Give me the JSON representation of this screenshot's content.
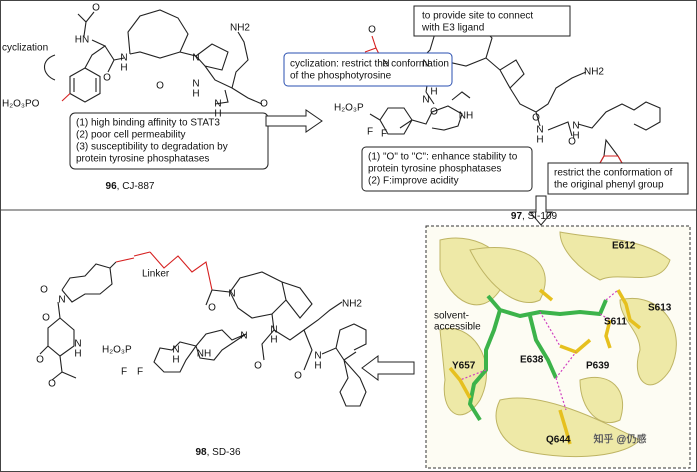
{
  "compound_96": {
    "number": "96",
    "label": ", CJ-887",
    "annotation": "cyclization",
    "phosphate": "H₂O₃PO",
    "atoms": [
      "HN",
      "O",
      "N",
      "H",
      "O",
      "N",
      "NH2",
      "O",
      "N",
      "H",
      "O",
      "N",
      "H"
    ],
    "issues": [
      "(1) high binding affinity to STAT3",
      "(2) poor cell permeability",
      "(3) susceptibility to degradation by",
      "protein tyrosine phosphatases"
    ]
  },
  "compound_97": {
    "number": "97",
    "label": ", SI-109",
    "phosphonate": "H₂O₃P",
    "atoms": [
      "O",
      "N",
      "N",
      "H",
      "N",
      "O",
      "NH",
      "F",
      "F",
      "NH2",
      "O",
      "N",
      "H",
      "O",
      "N",
      "H"
    ],
    "notes": {
      "e3_site": [
        "to provide site to connect",
        "with E3 ligand"
      ],
      "cyclization": [
        "cyclization: restrict the conformation",
        "of  the phosphotyrosine"
      ],
      "stability": [
        "(1) \"O\" to \"C\": enhance stability to",
        "protein tyrosine phosphatases",
        "(2) F:improve acidity"
      ],
      "phenyl": [
        "restrict the conformation of",
        "the original phenyl group"
      ]
    }
  },
  "compound_98": {
    "number": "98",
    "label": ", SD-36",
    "linker": "Linker",
    "phosphonate": "H₂O₃P",
    "atoms": [
      "O",
      "N",
      "O",
      "N",
      "H",
      "O",
      "O",
      "N",
      "N",
      "N",
      "H",
      "O",
      "NH",
      "F",
      "F",
      "NH2",
      "O",
      "N",
      "H",
      "O",
      "N",
      "H"
    ]
  },
  "crystal_structure": {
    "residues": [
      "E612",
      "S613",
      "S611",
      "E638",
      "P639",
      "Y657",
      "Q644"
    ],
    "solvent": [
      "solvent-",
      "accessible"
    ],
    "watermark": "知乎 @仍感"
  }
}
